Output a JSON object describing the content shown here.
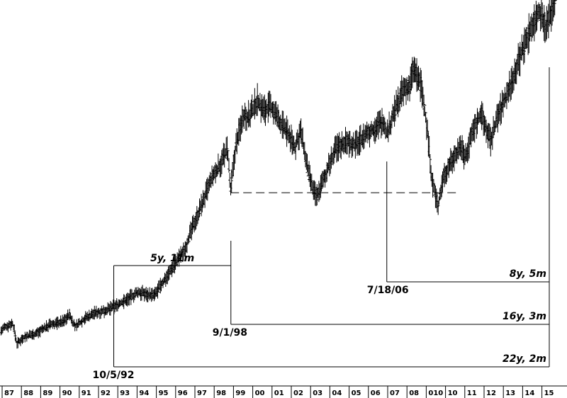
{
  "chart_data": {
    "type": "line",
    "style": "ohlc-bars",
    "title": "",
    "xlabel": "",
    "ylabel": "",
    "x_tick_labels": [
      "87",
      "88",
      "89",
      "90",
      "91",
      "92",
      "93",
      "94",
      "95",
      "96",
      "97",
      "98",
      "99",
      "00",
      "01",
      "02",
      "03",
      "04",
      "05",
      "06",
      "07",
      "08",
      "010",
      "10",
      "11",
      "12",
      "13",
      "14",
      "15"
    ],
    "x_range": [
      1987.0,
      2015.3
    ],
    "price_path": [
      [
        1987.0,
        0.065
      ],
      [
        1987.3,
        0.08
      ],
      [
        1987.65,
        0.09
      ],
      [
        1987.85,
        0.03
      ],
      [
        1988.2,
        0.05
      ],
      [
        1988.8,
        0.06
      ],
      [
        1989.5,
        0.085
      ],
      [
        1990.2,
        0.095
      ],
      [
        1990.5,
        0.115
      ],
      [
        1990.8,
        0.08
      ],
      [
        1991.3,
        0.105
      ],
      [
        1991.8,
        0.12
      ],
      [
        1992.5,
        0.13
      ],
      [
        1993.3,
        0.155
      ],
      [
        1994.0,
        0.18
      ],
      [
        1994.4,
        0.175
      ],
      [
        1994.8,
        0.17
      ],
      [
        1995.3,
        0.215
      ],
      [
        1995.8,
        0.26
      ],
      [
        1996.3,
        0.3
      ],
      [
        1996.8,
        0.38
      ],
      [
        1997.3,
        0.45
      ],
      [
        1997.7,
        0.51
      ],
      [
        1998.2,
        0.56
      ],
      [
        1998.5,
        0.6
      ],
      [
        1998.65,
        0.47
      ],
      [
        1998.9,
        0.6
      ],
      [
        1999.3,
        0.7
      ],
      [
        1999.6,
        0.69
      ],
      [
        2000.0,
        0.74
      ],
      [
        2000.3,
        0.71
      ],
      [
        2000.7,
        0.72
      ],
      [
        2001.2,
        0.67
      ],
      [
        2001.6,
        0.64
      ],
      [
        2001.9,
        0.6
      ],
      [
        2002.2,
        0.65
      ],
      [
        2002.5,
        0.55
      ],
      [
        2002.8,
        0.48
      ],
      [
        2003.0,
        0.46
      ],
      [
        2003.3,
        0.5
      ],
      [
        2003.7,
        0.56
      ],
      [
        2004.0,
        0.6
      ],
      [
        2004.5,
        0.62
      ],
      [
        2005.0,
        0.61
      ],
      [
        2005.5,
        0.64
      ],
      [
        2006.0,
        0.66
      ],
      [
        2006.4,
        0.68
      ],
      [
        2006.55,
        0.64
      ],
      [
        2006.9,
        0.7
      ],
      [
        2007.3,
        0.76
      ],
      [
        2007.7,
        0.78
      ],
      [
        2007.9,
        0.83
      ],
      [
        2008.3,
        0.78
      ],
      [
        2008.6,
        0.65
      ],
      [
        2008.85,
        0.5
      ],
      [
        2009.15,
        0.43
      ],
      [
        2009.4,
        0.52
      ],
      [
        2009.8,
        0.56
      ],
      [
        2010.3,
        0.61
      ],
      [
        2010.5,
        0.57
      ],
      [
        2010.9,
        0.65
      ],
      [
        2011.3,
        0.7
      ],
      [
        2011.6,
        0.65
      ],
      [
        2011.8,
        0.62
      ],
      [
        2012.2,
        0.7
      ],
      [
        2012.6,
        0.75
      ],
      [
        2013.0,
        0.82
      ],
      [
        2013.5,
        0.9
      ],
      [
        2013.9,
        0.96
      ],
      [
        2014.3,
        1.0
      ],
      [
        2014.6,
        0.95
      ],
      [
        2015.1,
        1.05
      ]
    ],
    "dashed_support_level": 0.47,
    "annotations": [
      {
        "date_label": "10/5/92",
        "duration_label": "22y, 2m",
        "x": 1992.75
      },
      {
        "date_label": "9/1/98",
        "duration_label": "16y, 3m",
        "x": 1998.67
      },
      {
        "date_label": "7/18/06",
        "duration_label": "8y, 5m",
        "x": 2006.55
      }
    ],
    "interval_label": "5y, 11m",
    "grid": false,
    "legend": "none"
  }
}
